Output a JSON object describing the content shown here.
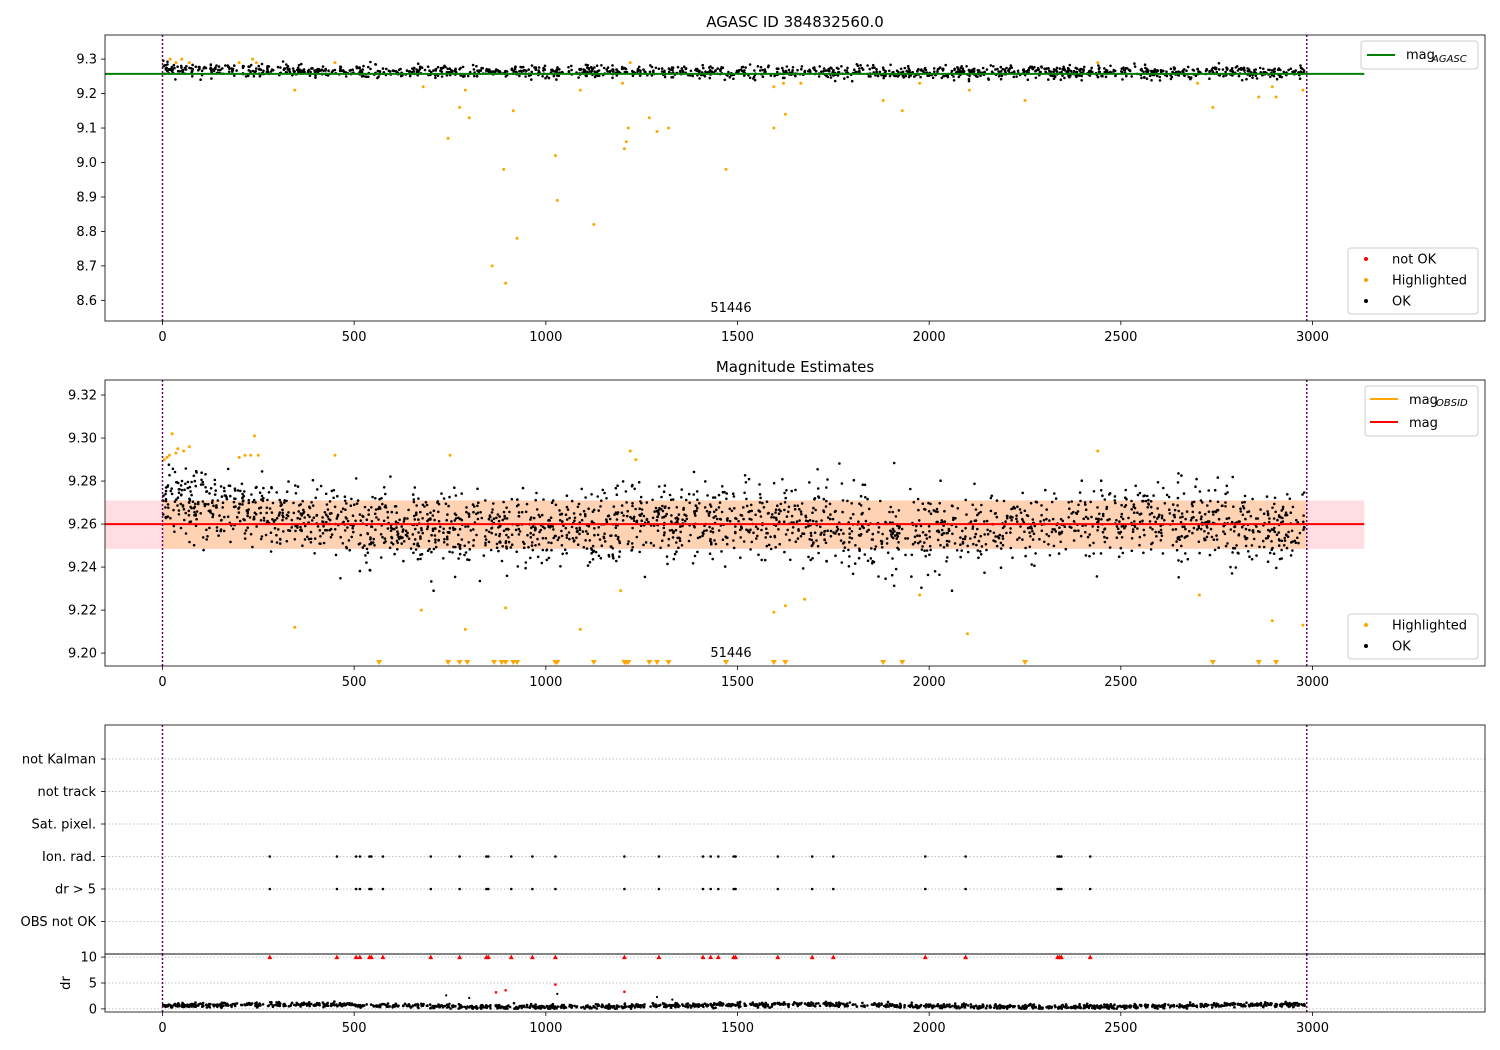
{
  "figure": {
    "obsid_label": "51446"
  },
  "chart_data": [
    {
      "type": "scatter",
      "title": "AGASC ID 384832560.0",
      "xlim": [
        -150,
        3450
      ],
      "ylim": [
        8.54,
        9.37
      ],
      "xticks": [
        0,
        500,
        1000,
        1500,
        2000,
        2500,
        3000
      ],
      "yticks": [
        8.6,
        8.7,
        8.8,
        8.9,
        9.0,
        9.1,
        9.2,
        9.3
      ],
      "ytick_labels": [
        "8.6",
        "8.7",
        "8.8",
        "8.9",
        "9.0",
        "9.1",
        "9.2",
        "9.3"
      ],
      "obs_boundaries": [
        0,
        2985
      ],
      "mag_agasc": 9.257,
      "mag_line_range": [
        -150,
        3135
      ],
      "legend_top": {
        "placement": "top-right",
        "label": "mag",
        "sub": "AGASC",
        "color": "#008000"
      },
      "legend_bottom": {
        "placement": "bottom-right",
        "items": [
          {
            "label": "not OK",
            "color": "#ff0000"
          },
          {
            "label": "Highlighted",
            "color": "#ffa500"
          },
          {
            "label": "OK",
            "color": "#000000"
          }
        ]
      },
      "ok_series": {
        "x_range": [
          0,
          2980
        ],
        "n": 1450,
        "center": 9.262,
        "spread": 0.009
      },
      "highlighted_points": [
        [
          20,
          9.3
        ],
        [
          35,
          9.29
        ],
        [
          50,
          9.3
        ],
        [
          70,
          9.29
        ],
        [
          200,
          9.29
        ],
        [
          235,
          9.3
        ],
        [
          245,
          9.29
        ],
        [
          345,
          9.21
        ],
        [
          450,
          9.29
        ],
        [
          680,
          9.22
        ],
        [
          745,
          9.07
        ],
        [
          775,
          9.16
        ],
        [
          790,
          9.21
        ],
        [
          800,
          9.13
        ],
        [
          860,
          8.7
        ],
        [
          890,
          8.98
        ],
        [
          895,
          8.65
        ],
        [
          915,
          9.15
        ],
        [
          925,
          8.78
        ],
        [
          1025,
          9.02
        ],
        [
          1030,
          8.89
        ],
        [
          1090,
          9.21
        ],
        [
          1125,
          8.82
        ],
        [
          1200,
          9.23
        ],
        [
          1205,
          9.04
        ],
        [
          1210,
          9.06
        ],
        [
          1215,
          9.1
        ],
        [
          1220,
          9.29
        ],
        [
          1270,
          9.13
        ],
        [
          1290,
          9.09
        ],
        [
          1320,
          9.1
        ],
        [
          1470,
          8.98
        ],
        [
          1595,
          9.1
        ],
        [
          1625,
          9.14
        ],
        [
          1595,
          9.22
        ],
        [
          1620,
          9.23
        ],
        [
          1665,
          9.23
        ],
        [
          1880,
          9.18
        ],
        [
          1930,
          9.15
        ],
        [
          1975,
          9.23
        ],
        [
          2105,
          9.21
        ],
        [
          2250,
          9.18
        ],
        [
          2440,
          9.29
        ],
        [
          2740,
          9.16
        ],
        [
          2700,
          9.23
        ],
        [
          2860,
          9.19
        ],
        [
          2895,
          9.22
        ],
        [
          2905,
          9.19
        ],
        [
          2975,
          9.21
        ]
      ]
    },
    {
      "type": "scatter",
      "title": "Magnitude Estimates",
      "xlim": [
        -150,
        3450
      ],
      "ylim": [
        9.194,
        9.327
      ],
      "xticks": [
        0,
        500,
        1000,
        1500,
        2000,
        2500,
        3000
      ],
      "yticks": [
        9.2,
        9.22,
        9.24,
        9.26,
        9.28,
        9.3,
        9.32
      ],
      "ytick_labels": [
        "9.20",
        "9.22",
        "9.24",
        "9.26",
        "9.28",
        "9.30",
        "9.32"
      ],
      "obs_boundaries": [
        0,
        2985
      ],
      "mag": 9.26,
      "mag_band": [
        9.2485,
        9.271
      ],
      "mag_obsid_band": [
        9.2485,
        9.271
      ],
      "mag_line_range": [
        -150,
        3135
      ],
      "legend_top": {
        "placement": "top-right",
        "items": [
          {
            "label": "mag",
            "sub": "OBSID",
            "color": "#ffa500"
          },
          {
            "label": "mag",
            "sub": "",
            "color": "#ff0000"
          }
        ]
      },
      "legend_bottom": {
        "placement": "bottom-right",
        "items": [
          {
            "label": "Highlighted",
            "color": "#ffa500"
          },
          {
            "label": "OK",
            "color": "#000000"
          }
        ]
      },
      "ok_series": {
        "x_range": [
          0,
          2980
        ],
        "n": 2300,
        "center": 9.259,
        "spread": 0.0085
      },
      "highlighted_points": [
        [
          5,
          9.29
        ],
        [
          12,
          9.291
        ],
        [
          18,
          9.292
        ],
        [
          25,
          9.302
        ],
        [
          35,
          9.293
        ],
        [
          40,
          9.295
        ],
        [
          55,
          9.294
        ],
        [
          70,
          9.296
        ],
        [
          200,
          9.291
        ],
        [
          215,
          9.292
        ],
        [
          230,
          9.292
        ],
        [
          240,
          9.301
        ],
        [
          250,
          9.292
        ],
        [
          345,
          9.212
        ],
        [
          450,
          9.292
        ],
        [
          675,
          9.22
        ],
        [
          750,
          9.292
        ],
        [
          790,
          9.211
        ],
        [
          895,
          9.221
        ],
        [
          1090,
          9.211
        ],
        [
          1195,
          9.229
        ],
        [
          1220,
          9.294
        ],
        [
          1235,
          9.29
        ],
        [
          1595,
          9.219
        ],
        [
          1625,
          9.222
        ],
        [
          1675,
          9.225
        ],
        [
          1975,
          9.227
        ],
        [
          2100,
          9.209
        ],
        [
          2440,
          9.294
        ],
        [
          2705,
          9.227
        ],
        [
          2895,
          9.215
        ],
        [
          2975,
          9.213
        ]
      ],
      "below_range_markers": [
        565,
        745,
        775,
        795,
        865,
        885,
        895,
        915,
        925,
        1025,
        1030,
        1125,
        1205,
        1210,
        1215,
        1270,
        1290,
        1320,
        1470,
        1595,
        1625,
        1880,
        1930,
        2250,
        2740,
        2860,
        2905
      ]
    },
    {
      "type": "scatter",
      "title": "",
      "xlim": [
        -150,
        3450
      ],
      "categories": [
        "not Kalman",
        "not track",
        "Sat. pixel.",
        "Ion. rad.",
        "dr > 5",
        "OBS not OK"
      ],
      "obs_boundaries": [
        0,
        2985
      ],
      "flag_x": [
        280,
        455,
        505,
        515,
        540,
        545,
        575,
        700,
        775,
        845,
        850,
        910,
        965,
        1025,
        1205,
        1295,
        1410,
        1430,
        1450,
        1490,
        1495,
        1605,
        1695,
        1750,
        1990,
        2095,
        2335,
        2340,
        2345,
        2420
      ],
      "flagged_rows": [
        "Ion. rad.",
        "dr > 5"
      ]
    },
    {
      "type": "scatter",
      "title": "",
      "ylabel": "dr",
      "xlim": [
        -150,
        3450
      ],
      "ylim": [
        -0.6,
        10.6
      ],
      "xticks": [
        0,
        500,
        1000,
        1500,
        2000,
        2500,
        3000
      ],
      "yticks": [
        0,
        5,
        10
      ],
      "ytick_labels": [
        "0",
        "5",
        "10"
      ],
      "obs_boundaries": [
        0,
        2985
      ],
      "capped_x": [
        280,
        455,
        505,
        515,
        540,
        545,
        575,
        700,
        775,
        845,
        850,
        910,
        965,
        1025,
        1205,
        1295,
        1410,
        1430,
        1450,
        1490,
        1495,
        1605,
        1695,
        1750,
        1990,
        2095,
        2335,
        2340,
        2345,
        2420
      ],
      "red_points": [
        [
          870,
          3.2
        ],
        [
          895,
          3.6
        ],
        [
          1025,
          4.7
        ],
        [
          1205,
          3.3
        ]
      ],
      "black_points": [
        [
          740,
          2.6
        ],
        [
          800,
          2.1
        ],
        [
          1030,
          2.9
        ],
        [
          1290,
          2.3
        ],
        [
          1330,
          1.8
        ]
      ],
      "ok_series": {
        "x_range": [
          0,
          2980
        ],
        "n": 1500,
        "center": 0.6,
        "spread": 0.22
      }
    }
  ]
}
